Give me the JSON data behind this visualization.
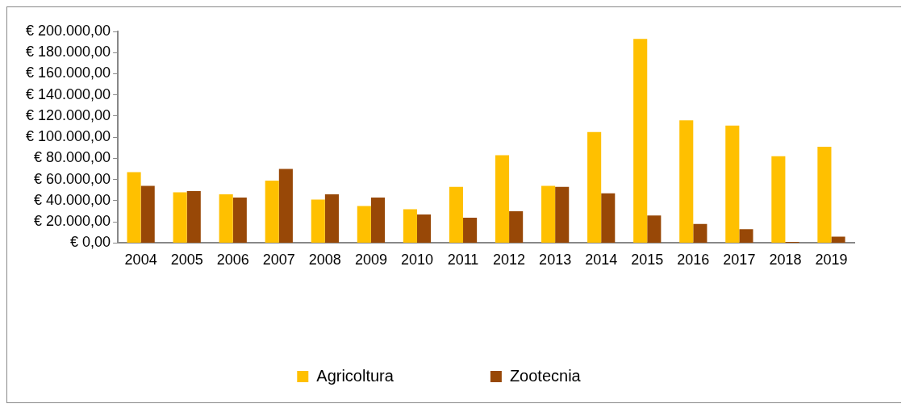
{
  "chart_data": {
    "type": "bar",
    "categories": [
      "2004",
      "2005",
      "2006",
      "2007",
      "2008",
      "2009",
      "2010",
      "2011",
      "2012",
      "2013",
      "2014",
      "2015",
      "2016",
      "2017",
      "2018",
      "2019"
    ],
    "series": [
      {
        "name": "Agricoltura",
        "color": "#ffc000",
        "values": [
          67000,
          48000,
          46000,
          59000,
          41000,
          35000,
          32000,
          53000,
          83000,
          54000,
          105000,
          193000,
          116000,
          111000,
          82000,
          91000
        ]
      },
      {
        "name": "Zootecnia",
        "color": "#984807",
        "values": [
          54000,
          49000,
          43000,
          70000,
          46000,
          43000,
          27000,
          24000,
          30000,
          53000,
          47000,
          26000,
          18000,
          13000,
          1000,
          6000
        ]
      }
    ],
    "ylim": [
      0,
      200000
    ],
    "yticks": [
      {
        "value": 0,
        "label": "€ 0,00"
      },
      {
        "value": 20000,
        "label": "€ 20.000,00"
      },
      {
        "value": 40000,
        "label": "€ 40.000,00"
      },
      {
        "value": 60000,
        "label": "€ 60.000,00"
      },
      {
        "value": 80000,
        "label": "€ 80.000,00"
      },
      {
        "value": 100000,
        "label": "€ 100.000,00"
      },
      {
        "value": 120000,
        "label": "€ 120.000,00"
      },
      {
        "value": 140000,
        "label": "€ 140.000,00"
      },
      {
        "value": 160000,
        "label": "€ 160.000,00"
      },
      {
        "value": 180000,
        "label": "€ 180.000,00"
      },
      {
        "value": 200000,
        "label": "€ 200.000,00"
      }
    ],
    "grid": false,
    "legend": "bottom"
  }
}
